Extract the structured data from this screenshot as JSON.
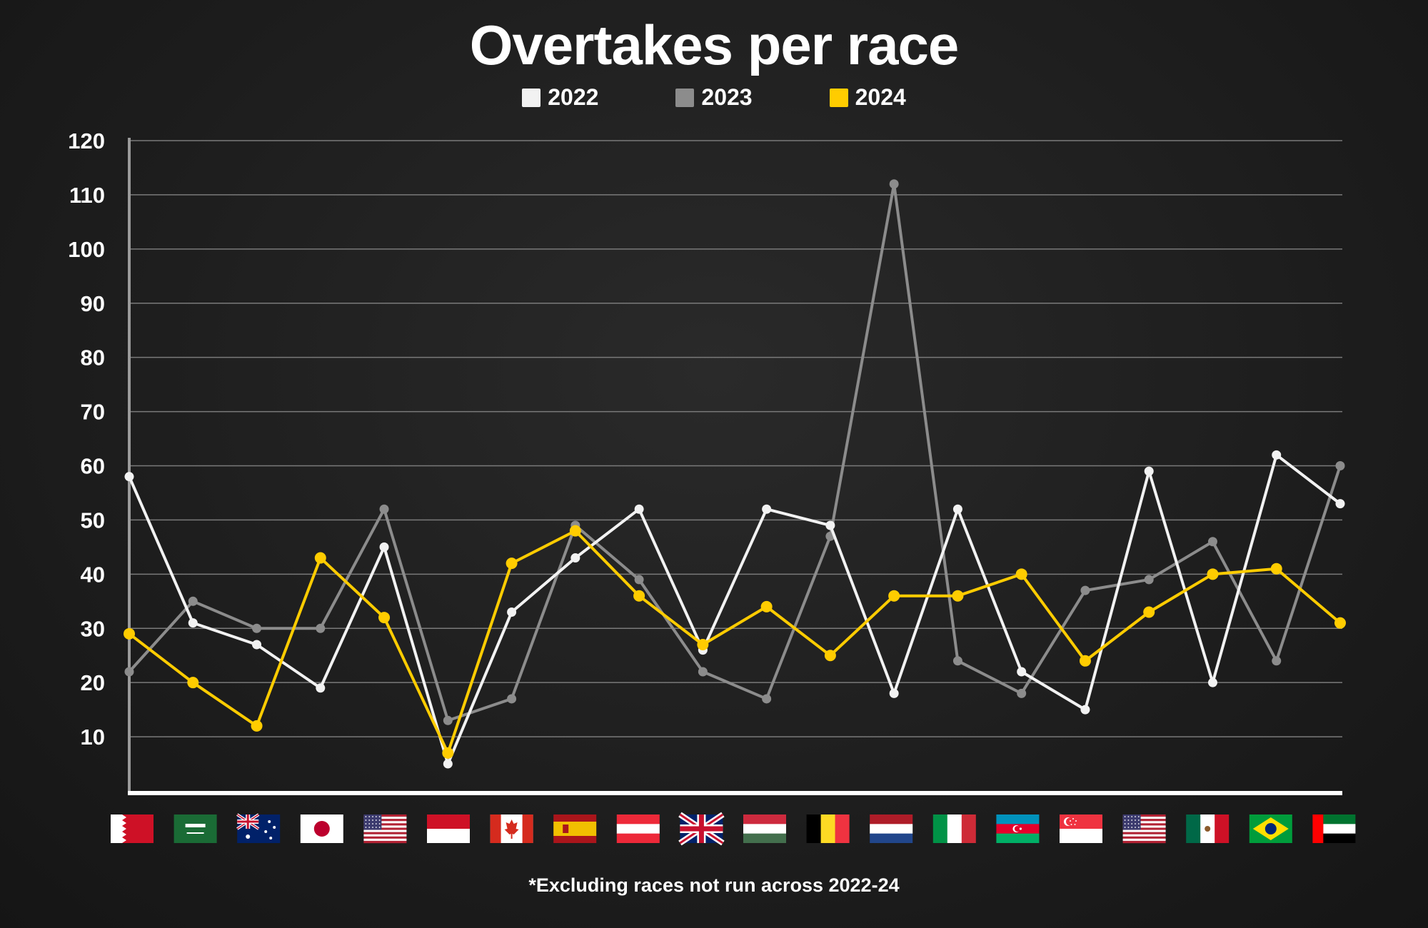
{
  "chart_data": {
    "type": "line",
    "title": "Overtakes per race",
    "footnote": "*Excluding races not run across 2022-24",
    "xlabel": "",
    "ylabel": "",
    "ylim": [
      0,
      120
    ],
    "yticks": [
      10,
      20,
      30,
      40,
      50,
      60,
      70,
      80,
      90,
      100,
      110,
      120
    ],
    "grid": true,
    "legend_position": "top-center",
    "categories": [
      "Bahrain",
      "Saudi Arabia",
      "Australia",
      "Japan",
      "USA (Miami)",
      "Monaco",
      "Canada",
      "Spain",
      "Austria",
      "Great Britain",
      "Hungary",
      "Belgium",
      "Netherlands",
      "Italy",
      "Azerbaijan",
      "Singapore",
      "USA (Austin)",
      "Mexico",
      "Brazil",
      "UAE"
    ],
    "flag_icons": [
      "bahrain-flag-icon",
      "saudi-arabia-flag-icon",
      "australia-flag-icon",
      "japan-flag-icon",
      "usa-flag-icon",
      "monaco-flag-icon",
      "canada-flag-icon",
      "spain-flag-icon",
      "austria-flag-icon",
      "great-britain-flag-icon",
      "hungary-flag-icon",
      "belgium-flag-icon",
      "netherlands-flag-icon",
      "italy-flag-icon",
      "azerbaijan-flag-icon",
      "singapore-flag-icon",
      "usa-flag-icon",
      "mexico-flag-icon",
      "brazil-flag-icon",
      "uae-flag-icon"
    ],
    "series": [
      {
        "name": "2022",
        "color": "#f2f2f2",
        "values": [
          58,
          31,
          27,
          19,
          45,
          5,
          33,
          43,
          52,
          26,
          52,
          49,
          18,
          52,
          22,
          15,
          59,
          20,
          62,
          53
        ]
      },
      {
        "name": "2023",
        "color": "#8c8c8c",
        "values": [
          22,
          35,
          30,
          30,
          52,
          13,
          17,
          49,
          39,
          22,
          17,
          47,
          112,
          24,
          18,
          37,
          39,
          46,
          24,
          60
        ]
      },
      {
        "name": "2024",
        "color": "#ffcc00",
        "values": [
          29,
          20,
          12,
          43,
          32,
          7,
          42,
          48,
          36,
          27,
          34,
          25,
          36,
          36,
          40,
          24,
          33,
          40,
          41,
          31
        ]
      }
    ]
  }
}
